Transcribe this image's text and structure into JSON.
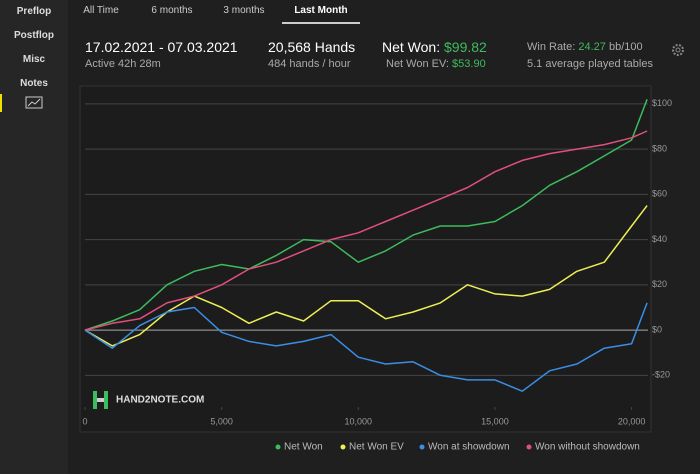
{
  "sidebar": {
    "items": [
      "Preflop",
      "Postflop",
      "Misc",
      "Notes"
    ]
  },
  "tabs": [
    "All Time",
    "6 months",
    "3 months",
    "Last Month"
  ],
  "stats": {
    "date_range": "17.02.2021 - 07.03.2021",
    "active": "Active 42h 28m",
    "hands": "20,568 Hands",
    "hands_per_hour": "484 hands / hour",
    "net_won_label": "Net Won:",
    "net_won": "$99.82",
    "net_won_ev_label": "Net Won  EV:",
    "net_won_ev": "$53.90",
    "win_rate_label": "Win Rate:",
    "win_rate": "24.27",
    "win_rate_unit": "bb/100",
    "tables": "5.1 average played tables"
  },
  "watermark": "HAND2NOTE.COM",
  "chart_data": {
    "type": "line",
    "x": [
      0,
      1000,
      2000,
      3000,
      4000,
      5000,
      6000,
      7000,
      8000,
      9000,
      10000,
      11000,
      12000,
      13000,
      14000,
      15000,
      16000,
      17000,
      18000,
      19000,
      20000,
      20568
    ],
    "xlim": [
      0,
      20600
    ],
    "xticks": [
      0,
      {
        "value": 5000,
        "label": "5,000"
      },
      {
        "value": 10000,
        "label": "10,000"
      },
      {
        "value": 15000,
        "label": "15,000"
      },
      {
        "value": 20000,
        "label": "20,000"
      }
    ],
    "ylim": [
      -34,
      107
    ],
    "yticks": [
      {
        "value": 100,
        "label": "$100"
      },
      {
        "value": 80,
        "label": "$80"
      },
      {
        "value": 60,
        "label": "$60"
      },
      {
        "value": 40,
        "label": "$40"
      },
      {
        "value": 20,
        "label": "$20"
      },
      {
        "value": 0,
        "label": "$0"
      },
      {
        "value": -20,
        "label": "-$20"
      }
    ],
    "grid": true,
    "series": [
      {
        "name": "Net Won",
        "color": "#3dbb5d",
        "values": [
          0,
          4,
          9,
          20,
          26,
          29,
          27,
          33,
          40,
          39,
          30,
          35,
          42,
          46,
          46,
          48,
          55,
          64,
          70,
          77,
          84,
          102
        ]
      },
      {
        "name": "Net Won  EV",
        "color": "#eeee55",
        "values": [
          0,
          -7,
          -2,
          8,
          15,
          10,
          3,
          8,
          4,
          13,
          13,
          5,
          8,
          12,
          20,
          16,
          15,
          18,
          26,
          30,
          46,
          55
        ]
      },
      {
        "name": "Won at showdown",
        "color": "#3a8ee6",
        "values": [
          0,
          -8,
          2,
          8,
          10,
          -1,
          -5,
          -7,
          -5,
          -2,
          -12,
          -15,
          -14,
          -20,
          -22,
          -22,
          -27,
          -18,
          -15,
          -8,
          -6,
          12
        ]
      },
      {
        "name": "Won without showdown",
        "color": "#e0507a",
        "values": [
          0,
          3,
          5,
          12,
          15,
          20,
          27,
          30,
          35,
          40,
          43,
          48,
          53,
          58,
          63,
          70,
          75,
          78,
          80,
          82,
          85,
          88
        ]
      }
    ]
  }
}
